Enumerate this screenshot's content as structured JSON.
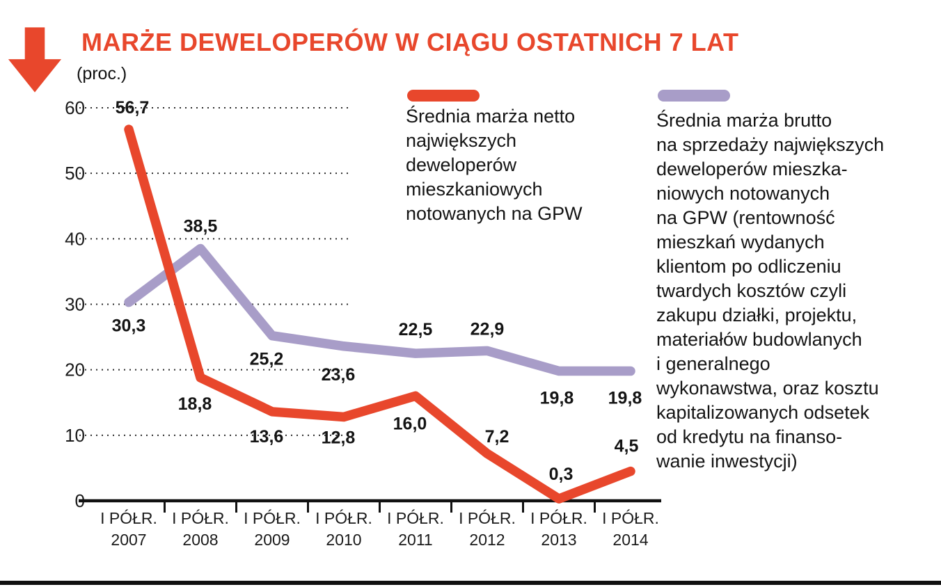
{
  "colors": {
    "accent": "#e8472c",
    "secondary": "#a89dc8",
    "text": "#1a1a1a"
  },
  "chart_data": {
    "type": "line",
    "title": "MARŻE DEWELOPERÓW W CIĄGU OSTATNICH 7 LAT",
    "ylabel": "(proc.)",
    "xlabel": "",
    "ylim": [
      0,
      60
    ],
    "yticks": [
      0,
      10,
      20,
      30,
      40,
      50,
      60
    ],
    "grid": "dotted-horizontal",
    "legend_position": "top-right",
    "categories": [
      "I PÓŁR. 2007",
      "I PÓŁR. 2008",
      "I PÓŁR. 2009",
      "I PÓŁR. 2010",
      "I PÓŁR. 2011",
      "I PÓŁR. 2012",
      "I PÓŁR. 2013",
      "I PÓŁR. 2014"
    ],
    "series": [
      {
        "name": "Średnia marża netto największych deweloperów mieszkaniowych notowanych na GPW",
        "legend_text": "Średnia marża netto\nnajwiększych\ndeweloperów\nmieszkaniowych\nnotowanych na GPW",
        "color": "#e8472c",
        "values": [
          56.7,
          18.8,
          13.6,
          12.8,
          16.0,
          7.2,
          0.3,
          4.5
        ],
        "labels": [
          "56,7",
          "18,8",
          "13,6",
          "12,8",
          "16,0",
          "7,2",
          "0,3",
          "4,5"
        ],
        "label_offsets": [
          [
            5,
            -23
          ],
          [
            -8,
            46
          ],
          [
            -8,
            44
          ],
          [
            -8,
            38
          ],
          [
            -8,
            48
          ],
          [
            14,
            -16
          ],
          [
            3,
            -27
          ],
          [
            -6,
            -28
          ]
        ]
      },
      {
        "name": "Średnia marża brutto na sprzedaży największych deweloperów mieszkaniowych notowanych na GPW (rentowność mieszkań wydanych klientom po odliczeniu twardych kosztów czyli zakupu działki, projektu, materiałów budowlanych i generalnego wykonawstwa, oraz kosztu kapitalizowanych odsetek od kredytu na finansowanie inwestycji)",
        "legend_text": "Średnia marża brutto\nna sprzedaży największych\ndeweloperów mieszka-\nniowych notowanych\nna GPW (rentowność\nmieszkań wydanych\nklientom po odliczeniu\ntwardych kosztów czyli\nzakupu działki, projektu,\nmateriałów budowlanych\ni generalnego\nwykonawstwa, oraz kosztu\nkapitalizowanych odsetek\nod kredytu na finanso-\nwanie inwestycji)",
        "color": "#a89dc8",
        "values": [
          30.3,
          38.5,
          25.2,
          23.6,
          22.5,
          22.9,
          19.8,
          19.8
        ],
        "labels": [
          "30,3",
          "38,5",
          "25,2",
          "23,6",
          "22,5",
          "22,9",
          "19,8",
          "19,8"
        ],
        "label_offsets": [
          [
            0,
            42
          ],
          [
            0,
            -24
          ],
          [
            -8,
            42
          ],
          [
            -8,
            49
          ],
          [
            0,
            -26
          ],
          [
            0,
            -23
          ],
          [
            -3,
            47
          ],
          [
            -8,
            47
          ]
        ]
      }
    ]
  }
}
